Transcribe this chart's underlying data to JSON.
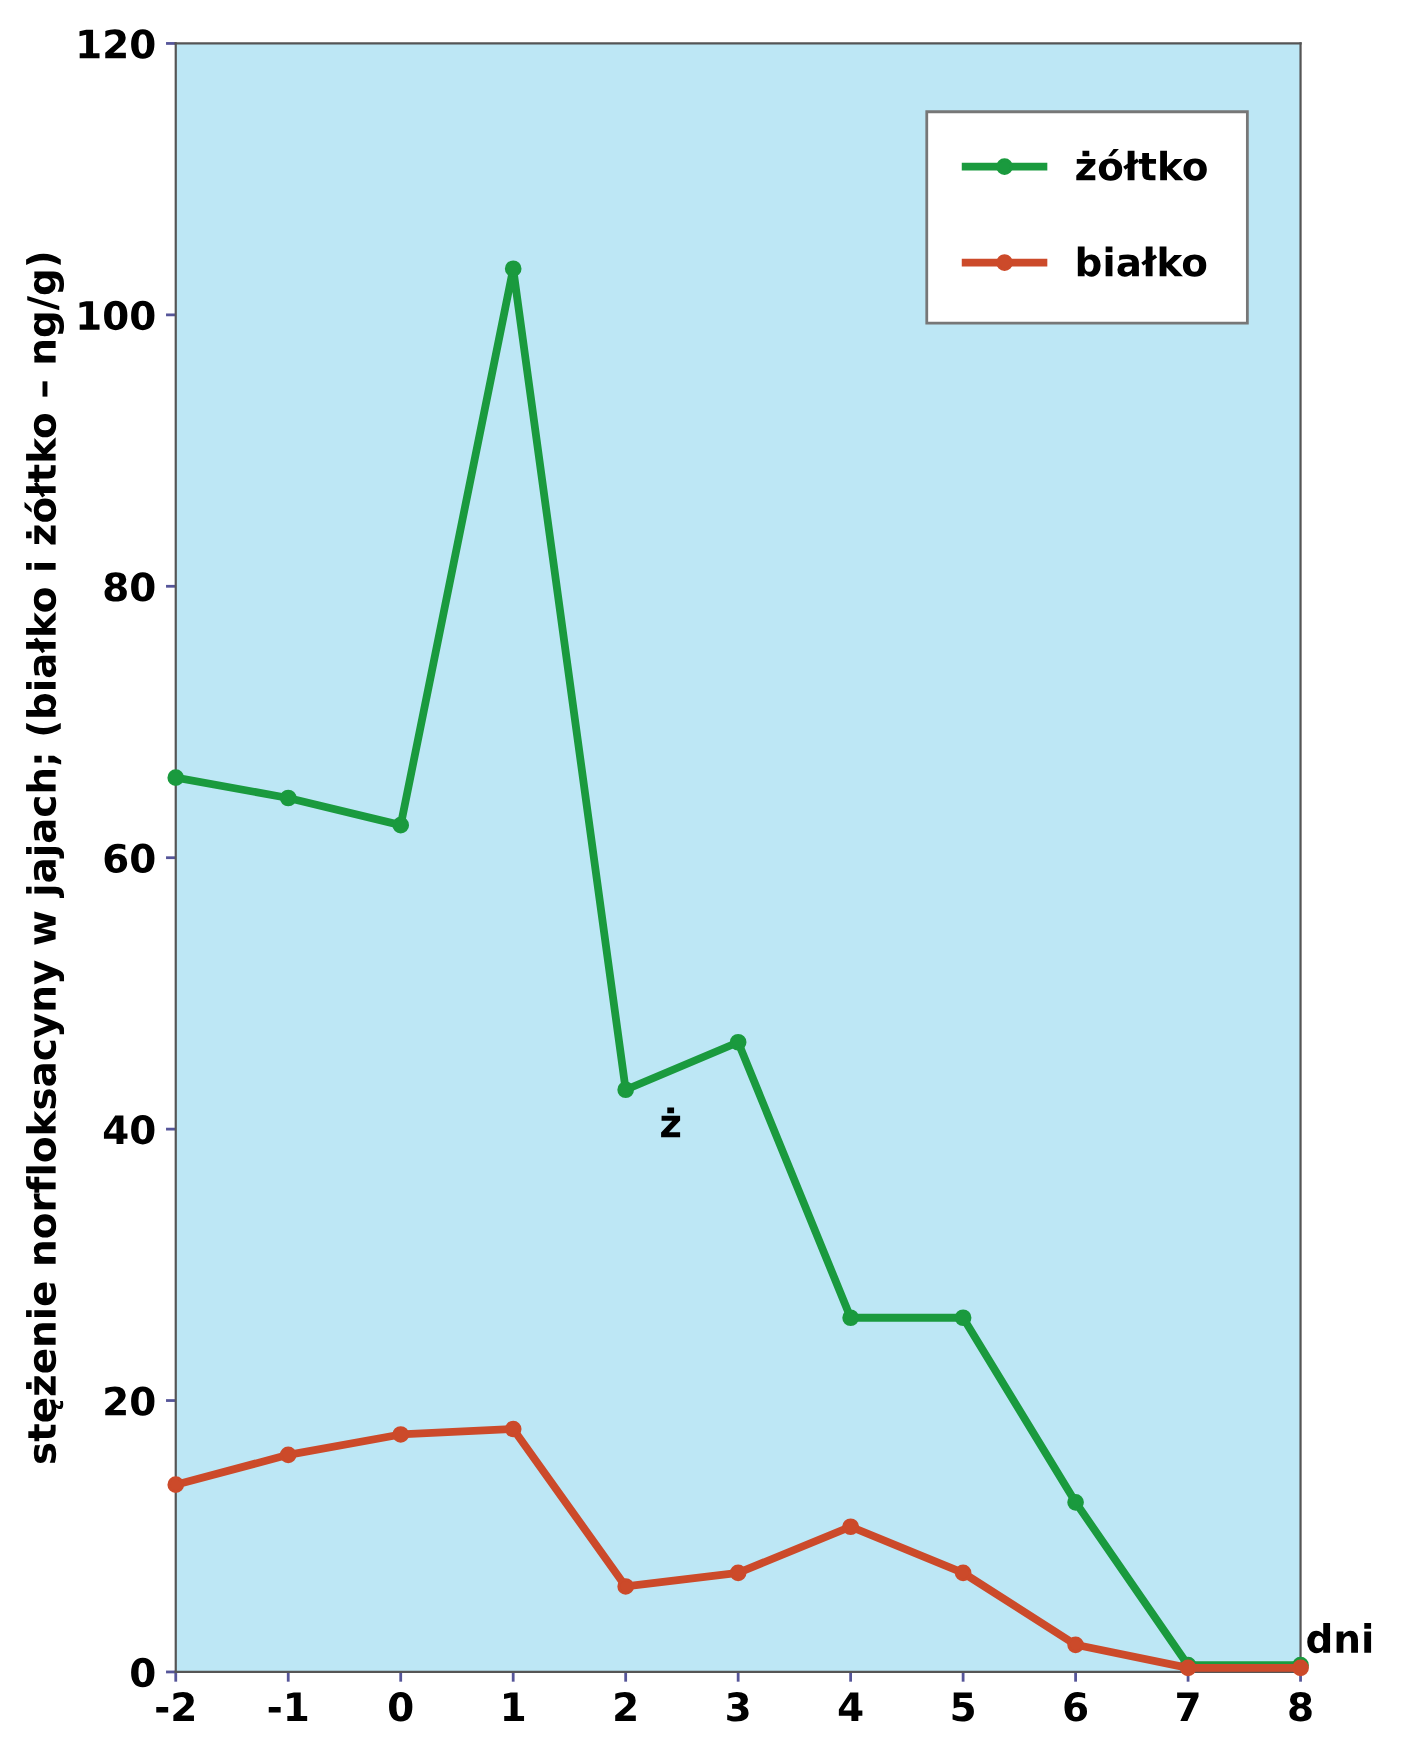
{
  "chart_data": {
    "type": "line",
    "x": [
      -2,
      -1,
      0,
      1,
      2,
      3,
      4,
      5,
      6,
      7,
      8
    ],
    "series": [
      {
        "name": "żółtko",
        "color": "#1a9a3e",
        "values": [
          65.9,
          64.4,
          62.4,
          103.4,
          42.9,
          46.4,
          26.1,
          26.1,
          12.5,
          0.5,
          0.5
        ]
      },
      {
        "name": "białko",
        "color": "#cc4a2a",
        "values": [
          13.8,
          16.0,
          17.5,
          17.9,
          6.3,
          7.3,
          10.7,
          7.3,
          2.0,
          0.3,
          0.3
        ]
      }
    ],
    "xlabel": "dni",
    "ylabel": "stężenie norfloksacyny w jajach; (białko i żółtko – ng/g)",
    "annotations": [
      "ż"
    ],
    "xlim": [
      -2,
      8
    ],
    "ylim": [
      0,
      120
    ],
    "xticks": [
      -2,
      -1,
      0,
      1,
      2,
      3,
      4,
      5,
      6,
      7,
      8
    ],
    "yticks": [
      0,
      20,
      40,
      60,
      80,
      100,
      120
    ],
    "grid": false,
    "legend": "top right",
    "marker": "circle",
    "line_style": "solid"
  }
}
